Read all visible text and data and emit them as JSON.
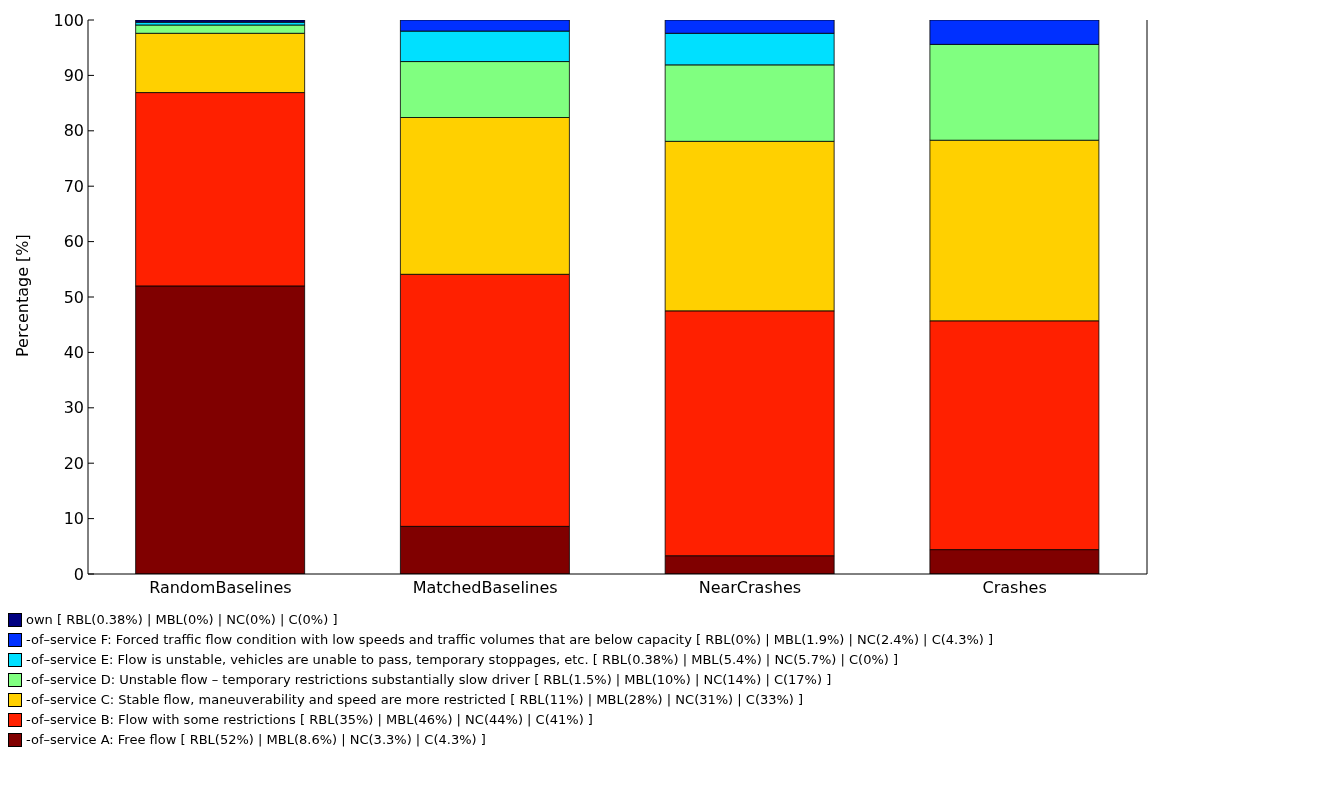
{
  "chart_data": {
    "type": "bar",
    "stacked": true,
    "ylabel": "Percentage [%]",
    "categories": [
      "RandomBaselines",
      "MatchedBaselines",
      "NearCrashes",
      "Crashes"
    ],
    "ylim": [
      0,
      100
    ],
    "yticks": [
      0,
      10,
      20,
      30,
      40,
      50,
      60,
      70,
      80,
      90,
      100
    ],
    "grid": false,
    "legend": "bottom",
    "series": [
      {
        "name": "-of–service A: Free flow [ RBL(52%) | MBL(8.6%) | NC(3.3%) | C(4.3%)  ]",
        "color": "#800000",
        "values": [
          52,
          8.6,
          3.3,
          4.4
        ]
      },
      {
        "name": "-of–service B: Flow with some restrictions [ RBL(35%) | MBL(46%) | NC(44%) | C(41%)  ]",
        "color": "#ff2000",
        "values": [
          34.9,
          45.5,
          44.2,
          41.3
        ]
      },
      {
        "name": "-of–service C: Stable flow, maneuverability and speed are more restricted [ RBL(11%) | MBL(28%) | NC(31%) | C(33%)  ]",
        "color": "#ffd000",
        "values": [
          10.7,
          28.3,
          30.6,
          32.6
        ]
      },
      {
        "name": "-of–service D: Unstable flow – temporary restrictions substantially slow driver [ RBL(1.5%) | MBL(10%) | NC(14%) | C(17%)  ]",
        "color": "#80ff80",
        "values": [
          1.5,
          10.1,
          13.8,
          17.3
        ]
      },
      {
        "name": "-of–service E: Flow is unstable, vehicles are unable to pass, temporary stoppages, etc. [ RBL(0.38%) | MBL(5.4%) | NC(5.7%) | C(0%)  ]",
        "color": "#00e0ff",
        "values": [
          0.5,
          5.5,
          5.7,
          0
        ]
      },
      {
        "name": "-of–service F: Forced traffic flow condition with low speeds and traffic volumes that are below capacity [ RBL(0%) | MBL(1.9%) | NC(2.4%) | C(4.3%) ]",
        "color": "#0030ff",
        "values": [
          0,
          2,
          2.4,
          4.4
        ]
      },
      {
        "name": "own [ RBL(0.38%) | MBL(0%) | NC(0%) | C(0%)  ]",
        "color": "#000080",
        "values": [
          0.4,
          0,
          0,
          0
        ]
      }
    ]
  }
}
